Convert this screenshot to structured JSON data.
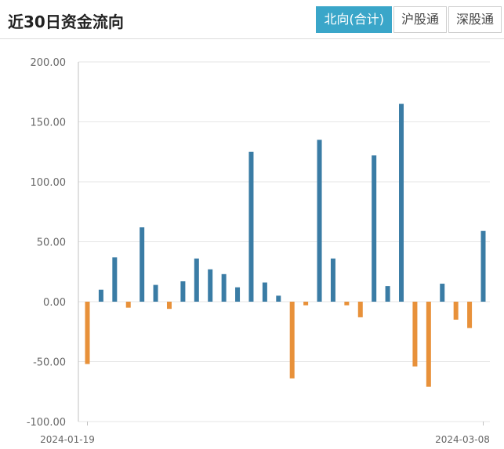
{
  "header": {
    "title": "近30日资金流向",
    "tabs": [
      {
        "label": "北向(合计)",
        "active": true
      },
      {
        "label": "沪股通",
        "active": false
      },
      {
        "label": "深股通",
        "active": false
      }
    ]
  },
  "colors": {
    "positive": "#3a7ca5",
    "negative": "#e8913a",
    "grid": "#e5e5e5",
    "axis": "#c0c0c0"
  },
  "chart_data": {
    "type": "bar",
    "ylim": [
      -100,
      200
    ],
    "yticks": [
      200,
      150,
      100,
      50,
      0,
      -50,
      -100
    ],
    "ytick_labels": [
      "200.00",
      "150.00",
      "100.00",
      "50.00",
      "0.00",
      "-50.00",
      "-100.00"
    ],
    "x_first_label": "2024-01-19",
    "x_last_label": "2024-03-08",
    "values": [
      -52,
      10,
      37,
      -5,
      62,
      14,
      -6,
      17,
      36,
      27,
      23,
      12,
      125,
      16,
      5,
      -64,
      -3,
      135,
      36,
      -3,
      -13,
      122,
      13,
      165,
      -54,
      -71,
      15,
      -15,
      -22,
      59
    ]
  }
}
